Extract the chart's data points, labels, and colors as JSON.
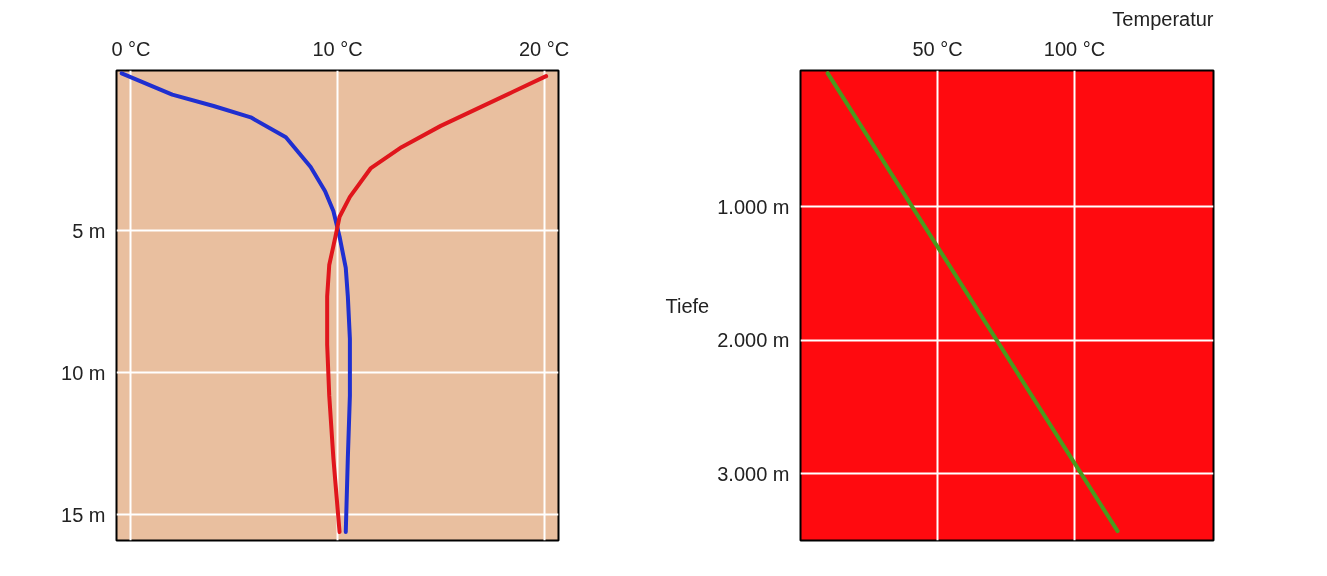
{
  "chart_data": [
    {
      "type": "line",
      "xlim": [
        -0.7,
        20.7
      ],
      "ylim": [
        15.9,
        -0.65
      ],
      "xticks": [
        {
          "value": 0,
          "label": "0 °C"
        },
        {
          "value": 10,
          "label": "10 °C"
        },
        {
          "value": 20,
          "label": "20 °C"
        }
      ],
      "yticks": [
        {
          "value": 5,
          "label": "5 m"
        },
        {
          "value": 10,
          "label": "10 m"
        },
        {
          "value": 15,
          "label": "15 m"
        }
      ],
      "grid": true,
      "series": [
        {
          "color": "#1f2fd0",
          "x": [
            -0.45,
            2.0,
            4.0,
            5.8,
            7.5,
            8.7,
            9.4,
            9.8,
            10.1,
            10.4,
            10.5,
            10.6,
            10.6,
            10.5,
            10.4
          ],
          "values": [
            -0.55,
            0.2,
            0.6,
            1.0,
            1.7,
            2.75,
            3.6,
            4.3,
            5.2,
            6.3,
            7.3,
            8.8,
            10.8,
            13.0,
            15.6
          ]
        },
        {
          "color": "#e0161c",
          "x": [
            20.1,
            18.5,
            16.9,
            15.0,
            13.1,
            11.6,
            10.6,
            10.1,
            9.9,
            9.6,
            9.5,
            9.5,
            9.6,
            9.8,
            10.1
          ],
          "values": [
            -0.45,
            0.1,
            0.65,
            1.3,
            2.05,
            2.8,
            3.8,
            4.5,
            5.2,
            6.2,
            7.3,
            9.0,
            10.8,
            13.0,
            15.6
          ]
        }
      ]
    },
    {
      "type": "line",
      "xlim": [
        0,
        150.7
      ],
      "ylim": [
        3500,
        -20
      ],
      "xticks": [
        {
          "value": 50,
          "label": "50 °C"
        },
        {
          "value": 100,
          "label": "100 °C"
        }
      ],
      "yticks": [
        {
          "value": 1000,
          "label": "1.000 m"
        },
        {
          "value": 2000,
          "label": "2.000 m"
        },
        {
          "value": 3000,
          "label": "3.000 m"
        }
      ],
      "grid": true,
      "xlabel": "Temperatur",
      "ylabel": "Tiefe",
      "series": [
        {
          "color": "#4a9a1e",
          "x": [
            9.9,
            115.7
          ],
          "values": [
            0,
            3430
          ]
        }
      ]
    }
  ]
}
